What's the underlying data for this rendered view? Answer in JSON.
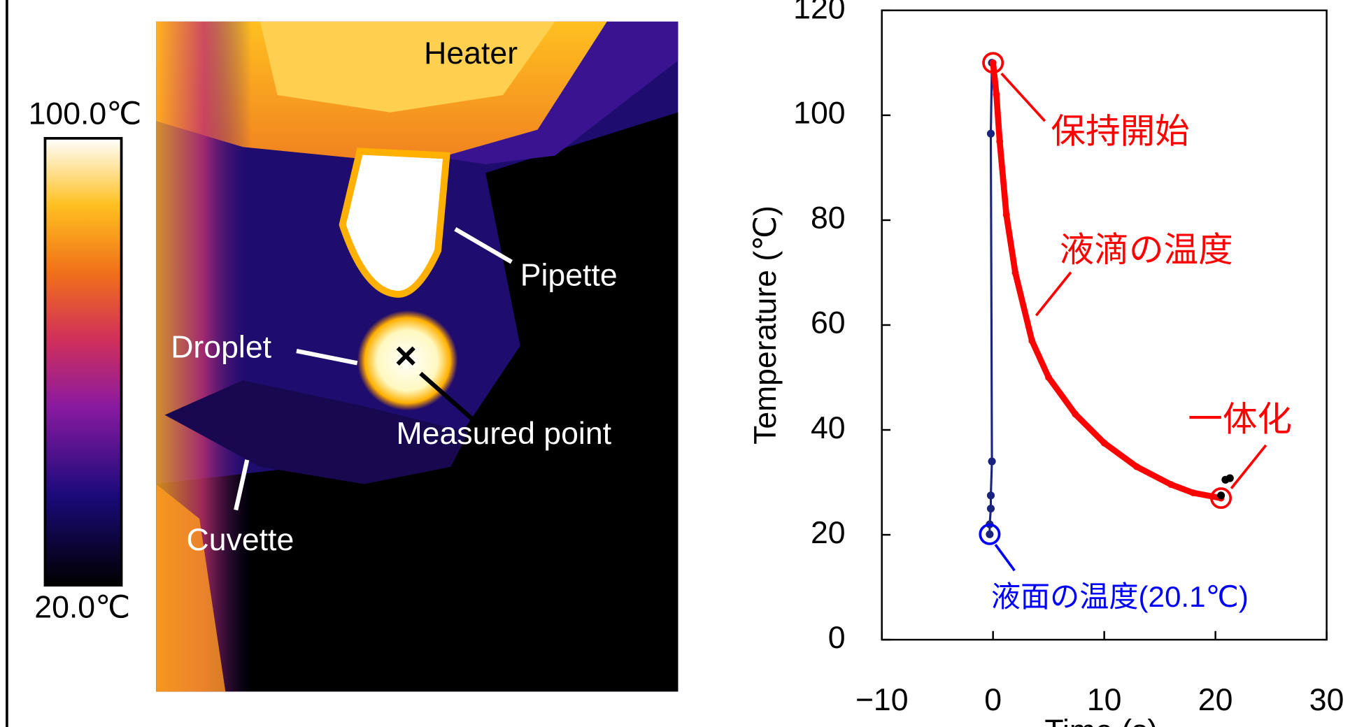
{
  "chart_data": {
    "type": "line",
    "xlabel": "Time (s)",
    "ylabel": "Temperature (℃)",
    "xlim": [
      -10,
      30
    ],
    "xticks": [
      {
        "value": -10,
        "label": "−10"
      },
      0,
      10,
      20,
      30
    ],
    "ylim": [
      0,
      120
    ],
    "yticks": [
      0,
      20,
      40,
      60,
      80,
      100,
      120
    ],
    "series": [
      {
        "color": "#1a237e",
        "x": [
          -0.3,
          -0.3,
          -0.2,
          -0.2,
          -0.1,
          -0.2,
          -0.1
        ],
        "values": [
          20.1,
          22,
          25,
          27.5,
          34,
          96.5,
          110
        ]
      },
      {
        "color": "#ff0000",
        "x": [
          0,
          0.3,
          0.6,
          1.2,
          2,
          3.5,
          5,
          7.4,
          10,
          12.9,
          16,
          18,
          20.5
        ],
        "values": [
          110,
          104,
          95,
          81,
          70,
          57,
          50,
          43,
          37.5,
          33,
          29.6,
          28,
          27
        ]
      },
      {
        "color": "#000000",
        "x": [
          20.5,
          20.9,
          21.3
        ],
        "values": [
          27.5,
          30.5,
          30.8
        ]
      }
    ],
    "annotations": [
      "保持開始",
      "液滴の温度",
      "一体化",
      "液面の温度(20.1℃)"
    ]
  },
  "thermal_image": {
    "colorbar_max": "100.0℃",
    "colorbar_min": "20.0℃",
    "labels": [
      "Heater",
      "Pipette",
      "Droplet",
      "Measured point",
      "Cuvette"
    ]
  }
}
